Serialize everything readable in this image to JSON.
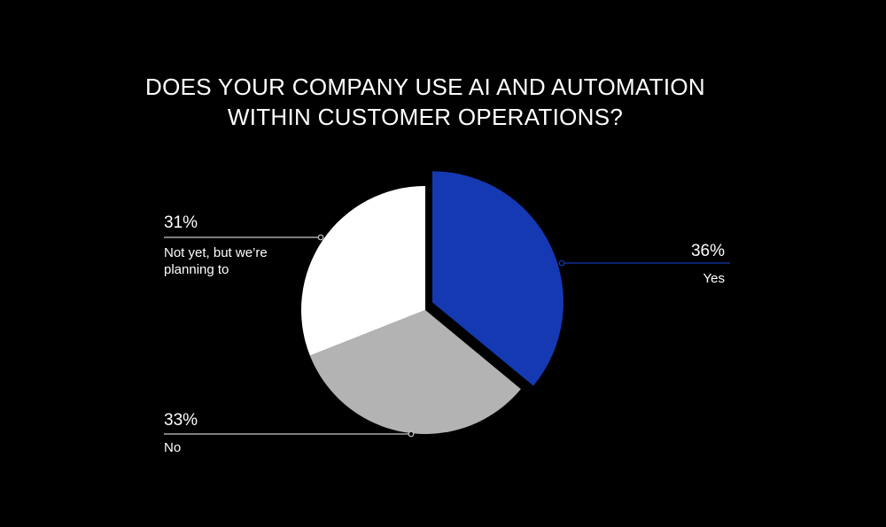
{
  "chart_data": {
    "type": "pie",
    "title_lines": [
      "DOES YOUR COMPANY USE AI AND AUTOMATION",
      "WITHIN CUSTOMER OPERATIONS?"
    ],
    "slices": [
      {
        "label": "Yes",
        "value": 36,
        "value_label": "36%",
        "color": "#1439b3"
      },
      {
        "label": "No",
        "value": 33,
        "value_label": "33%",
        "color": "#b3b3b3"
      },
      {
        "label": "Not yet, but we’re planning to",
        "label_lines": [
          "Not yet, but we’re",
          "planning to"
        ],
        "value": 31,
        "value_label": "31%",
        "color": "#ffffff"
      }
    ],
    "start_angle_deg": 0,
    "direction": "clockwise",
    "exploded_slice": "Yes",
    "legend": "none",
    "background": "#000000",
    "leader_line_color": "#c8c8c8",
    "yes_leader_line_color": "#1439b3"
  }
}
